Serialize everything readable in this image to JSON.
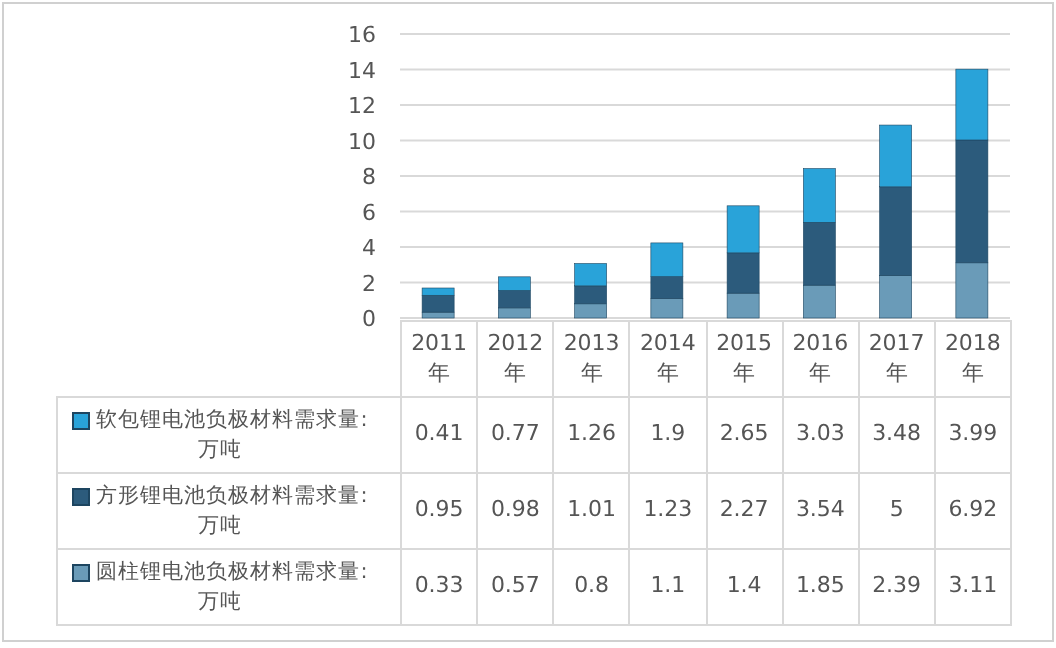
{
  "chart_data": {
    "type": "bar",
    "stacked": true,
    "categories": [
      "2011年",
      "2012年",
      "2013年",
      "2014年",
      "2015年",
      "2016年",
      "2017年",
      "2018年"
    ],
    "series": [
      {
        "name": "圆柱锂电池负极材料需求量:万吨",
        "color": "#6a9bb8",
        "values": [
          0.33,
          0.57,
          0.8,
          1.1,
          1.4,
          1.85,
          2.39,
          3.11
        ]
      },
      {
        "name": "方形锂电池负极材料需求量:万吨",
        "color": "#2c5b7c",
        "values": [
          0.95,
          0.98,
          1.01,
          1.23,
          2.27,
          3.54,
          5,
          6.92
        ]
      },
      {
        "name": "软包锂电池负极材料需求量:万吨",
        "color": "#29a3d9",
        "values": [
          0.41,
          0.77,
          1.26,
          1.9,
          2.65,
          3.03,
          3.48,
          3.99
        ]
      }
    ],
    "ylim": [
      0,
      16
    ],
    "yticks": [
      0,
      2,
      4,
      6,
      8,
      10,
      12,
      14,
      16
    ],
    "grid": "y",
    "data_labels": true,
    "legend": "bottom"
  }
}
